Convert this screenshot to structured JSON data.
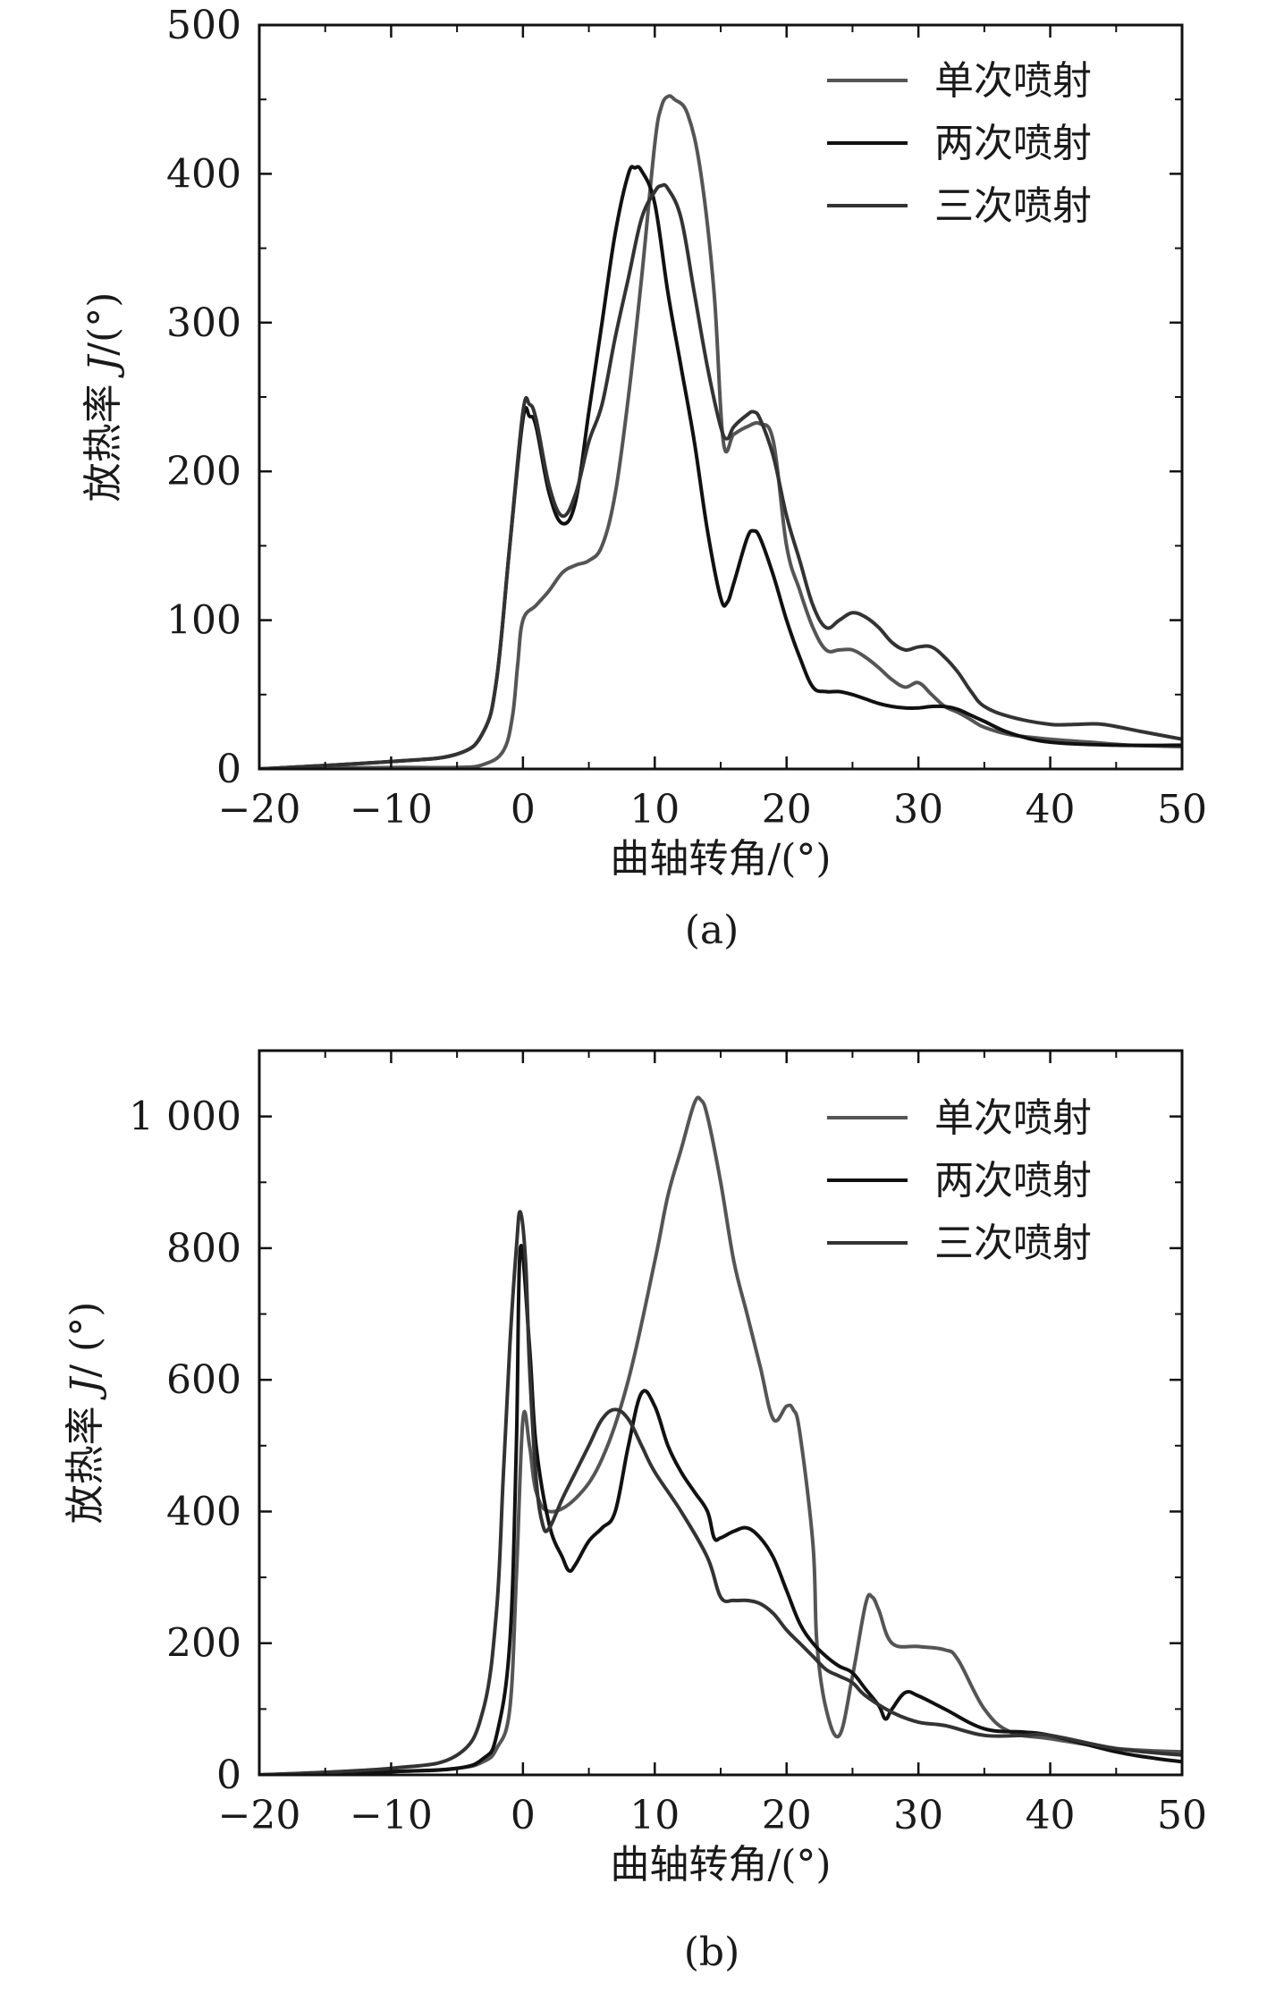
{
  "chart_data": [
    {
      "type": "line",
      "panel_label": "(a)",
      "title": "",
      "xlabel": "曲轴转角/(°)",
      "ylabel_prefix": "放热率 ",
      "ylabel_symbol": "J",
      "ylabel_suffix": "/(°)",
      "xlim": [
        -20,
        50
      ],
      "ylim": [
        0,
        500
      ],
      "xticks": [
        -20,
        -10,
        0,
        10,
        20,
        30,
        40,
        50
      ],
      "xtick_labels": [
        "−20",
        "−10",
        "0",
        "10",
        "20",
        "30",
        "40",
        "50"
      ],
      "yticks": [
        0,
        100,
        200,
        300,
        400,
        500
      ],
      "ytick_labels": [
        "0",
        "100",
        "200",
        "300",
        "400",
        "500"
      ],
      "grid": false,
      "legend_position": "top-right",
      "series": [
        {
          "name": "单次喷射",
          "color": "#555555",
          "x": [
            -20,
            -10,
            -5,
            -3,
            -1.5,
            -0.8,
            -0.4,
            0,
            1,
            2,
            3,
            4,
            5,
            6,
            7,
            8,
            9,
            10,
            10.5,
            11,
            11.5,
            12.5,
            13.5,
            14.5,
            15.2,
            16,
            17,
            18,
            19,
            20,
            21,
            22,
            23,
            24,
            25,
            26,
            27,
            28,
            29,
            30,
            31,
            32,
            33,
            34,
            35,
            37,
            40,
            43,
            46,
            50
          ],
          "y": [
            0,
            1,
            1,
            3,
            12,
            35,
            70,
            100,
            110,
            120,
            132,
            137,
            140,
            150,
            185,
            250,
            330,
            420,
            445,
            452,
            450,
            440,
            400,
            320,
            220,
            225,
            230,
            232,
            220,
            150,
            120,
            95,
            80,
            80,
            80,
            75,
            68,
            60,
            55,
            58,
            50,
            42,
            38,
            33,
            28,
            23,
            20,
            18,
            16,
            15
          ]
        },
        {
          "name": "两次喷射",
          "color": "#111111",
          "x": [
            -20,
            -10,
            -5,
            -3,
            -2,
            -1,
            0,
            0.5,
            1,
            2,
            3,
            4,
            5,
            6,
            7,
            8,
            8.5,
            9,
            10,
            11,
            12,
            13,
            14,
            15,
            15.5,
            16,
            17,
            17.5,
            18,
            19,
            20,
            21,
            22,
            23,
            24,
            25,
            26,
            27,
            28,
            29,
            30,
            31,
            32,
            33,
            34,
            35,
            37,
            40,
            45,
            50
          ],
          "y": [
            0,
            5,
            10,
            25,
            60,
            150,
            235,
            237,
            230,
            185,
            165,
            180,
            240,
            300,
            360,
            400,
            404,
            402,
            380,
            320,
            270,
            220,
            160,
            115,
            112,
            125,
            155,
            160,
            155,
            130,
            100,
            75,
            55,
            52,
            52,
            50,
            47,
            44,
            42,
            41,
            41,
            42,
            42,
            40,
            36,
            32,
            24,
            18,
            16,
            16
          ]
        },
        {
          "name": "三次喷射",
          "color": "#333333",
          "x": [
            -20,
            -10,
            -5,
            -3,
            -2,
            -1,
            0,
            0.5,
            1,
            2,
            3,
            4,
            5,
            6,
            7,
            8,
            9,
            10,
            10.5,
            11,
            12,
            13,
            14,
            15,
            15.5,
            16,
            17,
            17.5,
            18,
            19,
            20,
            21,
            22,
            23,
            24,
            25,
            26,
            27,
            28,
            29,
            30,
            31,
            32,
            33,
            34,
            35,
            37,
            40,
            42,
            44,
            47,
            50
          ],
          "y": [
            0,
            5,
            10,
            25,
            60,
            150,
            240,
            245,
            235,
            190,
            170,
            185,
            220,
            245,
            290,
            330,
            370,
            388,
            392,
            390,
            370,
            320,
            270,
            230,
            222,
            230,
            238,
            240,
            235,
            210,
            170,
            140,
            110,
            95,
            100,
            105,
            102,
            95,
            85,
            80,
            82,
            82,
            75,
            65,
            52,
            42,
            35,
            30,
            30,
            30,
            25,
            20
          ]
        }
      ]
    },
    {
      "type": "line",
      "panel_label": "(b)",
      "title": "",
      "xlabel": "曲轴转角/(°)",
      "ylabel_prefix": "放热率 ",
      "ylabel_symbol": "J",
      "ylabel_suffix": "/ (°)",
      "xlim": [
        -20,
        50
      ],
      "ylim": [
        0,
        1100
      ],
      "xticks": [
        -20,
        -10,
        0,
        10,
        20,
        30,
        40,
        50
      ],
      "xtick_labels": [
        "−20",
        "−10",
        "0",
        "10",
        "20",
        "30",
        "40",
        "50"
      ],
      "yticks": [
        0,
        200,
        400,
        600,
        800,
        1000
      ],
      "ytick_labels": [
        "0",
        "200",
        "400",
        "600",
        "800",
        "1 000"
      ],
      "grid": false,
      "legend_position": "top-right",
      "series": [
        {
          "name": "单次喷射",
          "color": "#555555",
          "x": [
            -20,
            -10,
            -5,
            -3,
            -2,
            -1,
            -0.5,
            0,
            0.5,
            1,
            2,
            4,
            6,
            8,
            10,
            11,
            12,
            13,
            13.5,
            14,
            15,
            16,
            17,
            18,
            19,
            20,
            20.5,
            21,
            22,
            22.3,
            23,
            24,
            25,
            26,
            26.5,
            27,
            28,
            30,
            32,
            33,
            35,
            37,
            40,
            45,
            50
          ],
          "y": [
            0,
            5,
            10,
            20,
            40,
            100,
            300,
            540,
            500,
            430,
            400,
            420,
            480,
            600,
            780,
            880,
            950,
            1020,
            1025,
            1000,
            900,
            780,
            700,
            620,
            540,
            560,
            555,
            520,
            350,
            200,
            100,
            60,
            150,
            260,
            270,
            250,
            200,
            195,
            190,
            175,
            100,
            65,
            55,
            40,
            35
          ]
        },
        {
          "name": "两次喷射",
          "color": "#111111",
          "x": [
            -20,
            -10,
            -5,
            -3,
            -2,
            -1,
            -0.5,
            -0.2,
            0.5,
            1,
            2,
            3,
            3.5,
            4,
            5,
            6,
            7,
            8,
            9,
            10,
            11,
            12,
            13,
            14,
            14.5,
            15,
            16,
            17,
            18,
            19,
            20,
            21,
            22,
            23,
            24,
            25,
            26,
            27,
            27.5,
            28,
            29,
            30,
            32,
            35,
            38,
            40,
            45,
            48,
            50
          ],
          "y": [
            0,
            5,
            10,
            25,
            60,
            200,
            500,
            800,
            650,
            500,
            380,
            330,
            310,
            320,
            355,
            375,
            400,
            500,
            580,
            560,
            500,
            460,
            430,
            400,
            360,
            360,
            370,
            375,
            360,
            330,
            280,
            230,
            200,
            180,
            165,
            155,
            130,
            105,
            85,
            100,
            125,
            120,
            100,
            70,
            65,
            60,
            35,
            25,
            20
          ]
        },
        {
          "name": "三次喷射",
          "color": "#333333",
          "x": [
            -20,
            -10,
            -5,
            -3,
            -2,
            -1.5,
            -1,
            -0.5,
            -0.2,
            0.2,
            0.5,
            1,
            1.5,
            2,
            3,
            4,
            5,
            6,
            7,
            8,
            9,
            10,
            12,
            14,
            15,
            16,
            17,
            18,
            19,
            20,
            21,
            22,
            23,
            24,
            25,
            26,
            28,
            30,
            32,
            35,
            38,
            40,
            45,
            50
          ],
          "y": [
            0,
            10,
            30,
            100,
            250,
            450,
            650,
            800,
            855,
            780,
            620,
            450,
            380,
            375,
            420,
            460,
            500,
            540,
            555,
            540,
            500,
            460,
            400,
            330,
            270,
            265,
            265,
            260,
            245,
            220,
            200,
            180,
            160,
            150,
            140,
            120,
            95,
            80,
            75,
            60,
            60,
            60,
            40,
            30
          ]
        }
      ]
    }
  ]
}
